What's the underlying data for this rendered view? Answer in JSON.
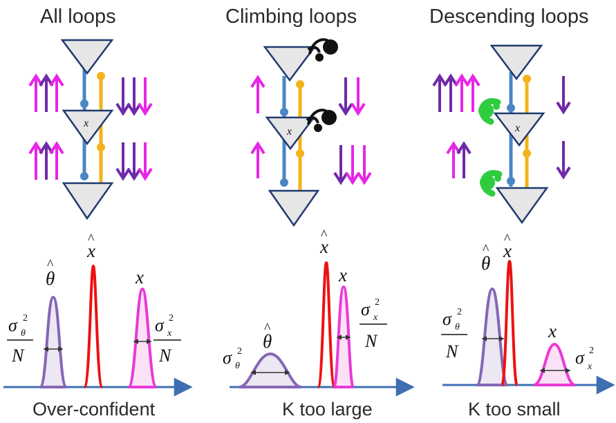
{
  "panels": [
    {
      "title": "All loops",
      "caption": "Over-confident",
      "node_label": "x",
      "symbols": {
        "theta_hat": "θ",
        "x_hat": "x",
        "x": "x",
        "sigma": "σ",
        "sub_theta": "θ",
        "sub_x": "x",
        "sup": "2",
        "N": "N"
      }
    },
    {
      "title": "Climbing loops",
      "caption": "K too large",
      "node_label": "x",
      "symbols": {
        "theta_hat": "θ",
        "x_hat": "x",
        "x": "x",
        "sigma": "σ",
        "sub_theta": "θ",
        "sub_x": "x",
        "sup": "2",
        "N": "N"
      }
    },
    {
      "title": "Descending loops",
      "caption": "K too small",
      "node_label": "x",
      "symbols": {
        "theta_hat": "θ",
        "x_hat": "x",
        "x": "x",
        "sigma": "σ",
        "sub_theta": "θ",
        "sub_x": "x",
        "sup": "2",
        "N": "N"
      }
    }
  ],
  "colors": {
    "magenta": "#e626e6",
    "purple": "#6f2aa8",
    "blue_wire": "#4a86c5",
    "yellow_wire": "#f3b31a",
    "triangle_fill": "#e6e6e6",
    "triangle_stroke": "#203a6e",
    "red_curve": "#ee1111",
    "pink_curve": "#e93ad6",
    "purple_curve": "#8566b5",
    "axis": "#3f6fb0",
    "climbing_loop": "#111111",
    "descending_loop": "#2fcc3e"
  }
}
